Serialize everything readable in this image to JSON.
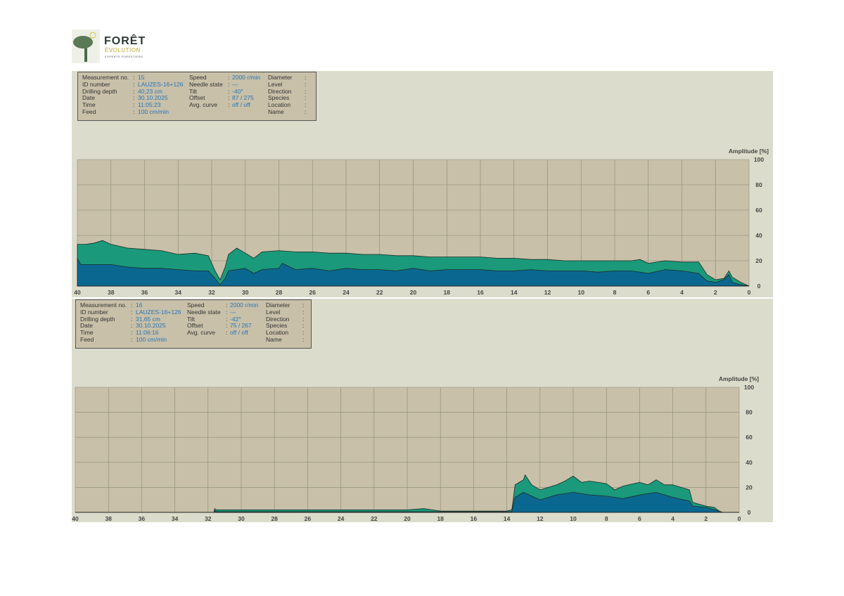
{
  "logo": {
    "line1": "FORÊT",
    "line2": "ÉVOLUTION",
    "line3": "EXPERTS FORESTIERS"
  },
  "colors": {
    "panel": "#dcdccc",
    "plot": "#c8c0a8",
    "upper_fill": "#1a9a7a",
    "lower_fill": "#0a6890",
    "grid": "#8a8a78"
  },
  "labels": {
    "measurement": "Measurement no.",
    "id": "ID number",
    "depth": "Drilling depth",
    "date": "Date",
    "time": "Time",
    "feed": "Feed",
    "speed": "Speed",
    "needle": "Needle state",
    "tilt": "Tilt",
    "offset": "Offset",
    "avg": "Avg. curve",
    "diameter": "Diameter",
    "level": "Level",
    "direction": "Direction",
    "species": "Species",
    "location": "Location",
    "name": "Name"
  },
  "measurements": [
    {
      "measurement": "15",
      "id": "LAUZES-16+126",
      "depth": "40,23 cm",
      "date": "30.10.2025",
      "time": "11:05:23",
      "feed": "100 cm/min",
      "speed": "2000 r/min",
      "needle": "---",
      "tilt": "-40°",
      "offset": "87 / 275",
      "avg": "off / off"
    },
    {
      "measurement": "16",
      "id": "LAUZES-16+126",
      "depth": "31,65 cm",
      "date": "30.10.2025",
      "time": "11:06:16",
      "feed": "100 cm/min",
      "speed": "2000 r/min",
      "needle": "---",
      "tilt": "-42°",
      "offset": "75 / 267",
      "avg": "off / off"
    }
  ],
  "chart_data": [
    {
      "type": "area",
      "ylabel": "Amplitude [%]",
      "xlim": [
        40,
        0
      ],
      "ylim": [
        0,
        100
      ],
      "xticks": [
        40,
        38,
        36,
        34,
        32,
        30,
        28,
        26,
        24,
        22,
        20,
        18,
        16,
        14,
        12,
        10,
        8,
        6,
        4,
        2,
        0
      ],
      "yticks": [
        0,
        20,
        40,
        60,
        80,
        100
      ],
      "grid": true,
      "series": [
        {
          "x": [
            40,
            39.5,
            39,
            38.5,
            38,
            37,
            36,
            35,
            34,
            33,
            32.2,
            31.8,
            31.5,
            31.2,
            31,
            30.5,
            30,
            29.5,
            29,
            28,
            27,
            26,
            25,
            24,
            23,
            22,
            21,
            20,
            19,
            18,
            17,
            16,
            15,
            14,
            13,
            12,
            11,
            10,
            9,
            8,
            7,
            6.5,
            6,
            5,
            4,
            3,
            2.5,
            2,
            1.5,
            1.2,
            1,
            0.5,
            0
          ],
          "y": [
            33,
            33,
            34,
            36,
            33,
            30,
            29,
            28,
            25,
            26,
            24,
            12,
            5,
            15,
            25,
            30,
            26,
            22,
            27,
            28,
            27,
            27,
            26,
            26,
            25,
            25,
            24,
            24,
            23,
            23,
            23,
            23,
            22,
            22,
            21,
            21,
            20,
            20,
            20,
            20,
            20,
            21,
            18,
            20,
            19,
            19,
            9,
            5,
            6,
            12,
            7,
            3,
            0
          ]
        },
        {
          "x": [
            40,
            39.8,
            39,
            38,
            37,
            36,
            35,
            34,
            33,
            32.2,
            31.8,
            31.5,
            31.2,
            31,
            30,
            29.5,
            29,
            28,
            27.8,
            27,
            26,
            25,
            24,
            23,
            22,
            21,
            20,
            19,
            18,
            17,
            16,
            15,
            14,
            13,
            12,
            11,
            10,
            9,
            8,
            7,
            6,
            5,
            4,
            3,
            2.5,
            2,
            1.5,
            1.2,
            1,
            0.5,
            0
          ],
          "y": [
            22,
            17,
            17,
            17,
            15,
            14,
            14,
            13,
            12,
            12,
            6,
            1,
            6,
            12,
            14,
            10,
            13,
            14,
            18,
            13,
            14,
            12,
            14,
            13,
            13,
            12,
            14,
            12,
            13,
            13,
            13,
            12,
            12,
            13,
            12,
            12,
            12,
            11,
            12,
            12,
            10,
            13,
            12,
            10,
            4,
            3,
            5,
            9,
            3,
            1,
            0
          ]
        }
      ]
    },
    {
      "type": "area",
      "ylabel": "Amplitude [%]",
      "xlim": [
        40,
        0
      ],
      "ylim": [
        0,
        100
      ],
      "xticks": [
        40,
        38,
        36,
        34,
        32,
        30,
        28,
        26,
        24,
        22,
        20,
        18,
        16,
        14,
        12,
        10,
        8,
        6,
        4,
        2,
        0
      ],
      "yticks": [
        0,
        20,
        40,
        60,
        80,
        100
      ],
      "grid": true,
      "series": [
        {
          "x": [
            31.65,
            31.6,
            31.5,
            25,
            20,
            19,
            18.5,
            18,
            14,
            13.7,
            13.5,
            13,
            12.9,
            12.5,
            12,
            11,
            10.5,
            10,
            9.5,
            9,
            8,
            7.5,
            7,
            6,
            5.5,
            5,
            4.5,
            4,
            3.5,
            3,
            2.8,
            2,
            1.5,
            1.2,
            1,
            0
          ],
          "y": [
            0,
            3,
            2,
            2,
            2,
            3,
            2,
            1,
            1,
            2,
            22,
            26,
            30,
            22,
            18,
            22,
            25,
            29,
            24,
            25,
            23,
            18,
            21,
            24,
            22,
            26,
            22,
            22,
            20,
            18,
            8,
            5,
            4,
            1,
            0,
            0
          ]
        },
        {
          "x": [
            31.65,
            31.6,
            31.5,
            14,
            13.7,
            13.5,
            13,
            12,
            11,
            10,
            9,
            8,
            7,
            6,
            5,
            4,
            3,
            2.8,
            2,
            1.2,
            1,
            0
          ],
          "y": [
            0,
            1.5,
            0.5,
            0.5,
            0.5,
            12,
            16,
            10,
            14,
            16,
            14,
            13,
            11,
            14,
            16,
            12,
            9,
            5,
            4,
            1,
            0,
            0
          ]
        }
      ]
    }
  ]
}
